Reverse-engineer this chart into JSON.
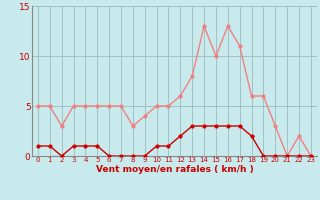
{
  "x": [
    0,
    1,
    2,
    3,
    4,
    5,
    6,
    7,
    8,
    9,
    10,
    11,
    12,
    13,
    14,
    15,
    16,
    17,
    18,
    19,
    20,
    21,
    22,
    23
  ],
  "wind_avg": [
    1,
    1,
    0,
    1,
    1,
    1,
    0,
    0,
    0,
    0,
    1,
    1,
    2,
    3,
    3,
    3,
    3,
    3,
    2,
    0,
    0,
    0,
    0,
    0
  ],
  "wind_gust": [
    5,
    5,
    3,
    5,
    5,
    5,
    5,
    5,
    3,
    4,
    5,
    5,
    6,
    8,
    13,
    10,
    13,
    11,
    6,
    6,
    3,
    0,
    2,
    0
  ],
  "bg_color": "#c8eaed",
  "avg_color": "#cc0000",
  "gust_color": "#f08080",
  "grid_color": "#9bbcbe",
  "xlabel": "Vent moyen/en rafales ( km/h )",
  "xlabel_color": "#cc0000",
  "tick_color": "#cc0000",
  "spine_color": "#888888",
  "ylim": [
    0,
    15
  ],
  "yticks": [
    0,
    5,
    10,
    15
  ],
  "xlim": [
    -0.5,
    23.5
  ]
}
